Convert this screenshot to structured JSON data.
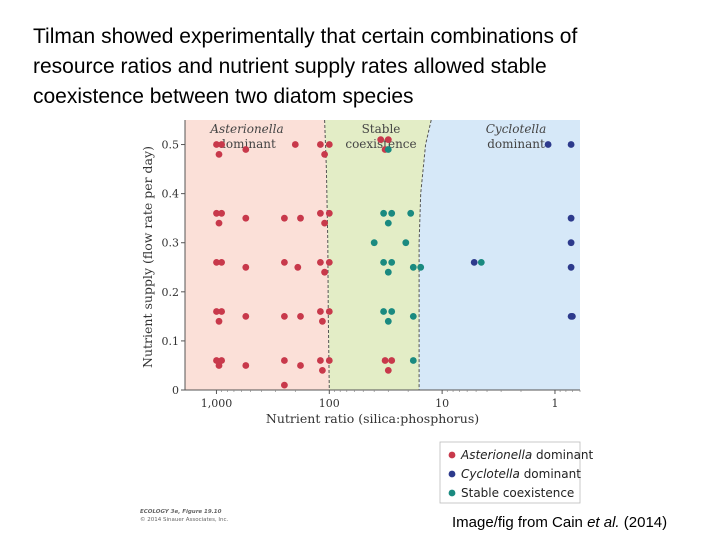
{
  "slide": {
    "title_lines": [
      "Tilman showed experimentally that certain combinations of",
      "resource ratios and nutrient supply rates allowed stable",
      "coexistence between two diatom species"
    ],
    "citation_prefix": "Image/fig from Cain ",
    "citation_italic": "et al.",
    "citation_suffix": " (2014)",
    "figure_credit_line1": "ECOLOGY 3e, Figure 19.10",
    "figure_credit_line2": "© 2014 Sinauer Associates, Inc."
  },
  "chart_data": {
    "type": "scatter",
    "title": "",
    "xlabel": "Nutrient ratio (silica:phosphorus)",
    "ylabel": "Nutrient supply (flow rate per day)",
    "x_scale": "log (reversed)",
    "xlim": [
      1900,
      0.6
    ],
    "ylim": [
      0,
      0.55
    ],
    "x_ticks": [
      1000,
      100,
      10,
      1
    ],
    "x_tick_labels": [
      "1,000",
      "100",
      "10",
      "1"
    ],
    "y_ticks": [
      0,
      0.1,
      0.2,
      0.3,
      0.4,
      0.5
    ],
    "y_tick_labels": [
      "0",
      "0.1",
      "0.2",
      "0.3",
      "0.4",
      "0.5"
    ],
    "regions": [
      {
        "label_lines": [
          "Asterionella",
          "dominant"
        ],
        "italic_first": true,
        "color": "#fbe0d8"
      },
      {
        "label_lines": [
          "Stable",
          "coexistence"
        ],
        "italic_first": false,
        "color": "#e3edc6"
      },
      {
        "label_lines": [
          "Cyclotella",
          "dominant"
        ],
        "italic_first": true,
        "color": "#d6e8f8"
      }
    ],
    "region_boundaries": {
      "left": [
        [
          110,
          0.55
        ],
        [
          106,
          0.45
        ],
        [
          103,
          0.3
        ],
        [
          102,
          0.15
        ],
        [
          100,
          0
        ]
      ],
      "right": [
        [
          12.5,
          0.55
        ],
        [
          14,
          0.5
        ],
        [
          15.5,
          0.4
        ],
        [
          16,
          0.3
        ],
        [
          16,
          0
        ]
      ]
    },
    "legend": {
      "placement": "bottom-right",
      "entries": [
        {
          "name_italic": "Asterionella",
          "name_rest": " dominant",
          "color": "#c8394b"
        },
        {
          "name_italic": "Cyclotella",
          "name_rest": " dominant",
          "color": "#2d3a8c"
        },
        {
          "name_italic": "",
          "name_rest": "Stable coexistence",
          "color": "#1a8a80"
        }
      ]
    },
    "series": [
      {
        "name": "Asterionella dominant",
        "color": "#c8394b",
        "points": [
          [
            1000,
            0.5
          ],
          [
            900,
            0.5
          ],
          [
            950,
            0.48
          ],
          [
            550,
            0.49
          ],
          [
            200,
            0.5
          ],
          [
            120,
            0.5
          ],
          [
            100,
            0.5
          ],
          [
            110,
            0.48
          ],
          [
            35,
            0.51
          ],
          [
            30,
            0.51
          ],
          [
            32,
            0.49
          ],
          [
            1000,
            0.36
          ],
          [
            900,
            0.36
          ],
          [
            950,
            0.34
          ],
          [
            550,
            0.35
          ],
          [
            250,
            0.35
          ],
          [
            180,
            0.35
          ],
          [
            120,
            0.36
          ],
          [
            100,
            0.36
          ],
          [
            110,
            0.34
          ],
          [
            1000,
            0.26
          ],
          [
            900,
            0.26
          ],
          [
            550,
            0.25
          ],
          [
            250,
            0.26
          ],
          [
            190,
            0.25
          ],
          [
            120,
            0.26
          ],
          [
            100,
            0.26
          ],
          [
            110,
            0.24
          ],
          [
            1000,
            0.16
          ],
          [
            900,
            0.16
          ],
          [
            950,
            0.14
          ],
          [
            550,
            0.15
          ],
          [
            250,
            0.15
          ],
          [
            180,
            0.15
          ],
          [
            120,
            0.16
          ],
          [
            100,
            0.16
          ],
          [
            115,
            0.14
          ],
          [
            1000,
            0.06
          ],
          [
            900,
            0.06
          ],
          [
            950,
            0.05
          ],
          [
            550,
            0.05
          ],
          [
            250,
            0.06
          ],
          [
            250,
            0.01
          ],
          [
            180,
            0.05
          ],
          [
            120,
            0.06
          ],
          [
            100,
            0.06
          ],
          [
            115,
            0.04
          ],
          [
            32,
            0.06
          ],
          [
            28,
            0.06
          ],
          [
            30,
            0.04
          ]
        ]
      },
      {
        "name": "Stable coexistence",
        "color": "#1a8a80",
        "points": [
          [
            30,
            0.49
          ],
          [
            33,
            0.36
          ],
          [
            28,
            0.36
          ],
          [
            30,
            0.34
          ],
          [
            19,
            0.36
          ],
          [
            40,
            0.3
          ],
          [
            21,
            0.3
          ],
          [
            33,
            0.26
          ],
          [
            28,
            0.26
          ],
          [
            18,
            0.25
          ],
          [
            15.5,
            0.25
          ],
          [
            30,
            0.24
          ],
          [
            4.5,
            0.26
          ],
          [
            33,
            0.16
          ],
          [
            28,
            0.16
          ],
          [
            30,
            0.14
          ],
          [
            18,
            0.15
          ],
          [
            18,
            0.06
          ]
        ]
      },
      {
        "name": "Cyclotella dominant",
        "color": "#2d3a8c",
        "points": [
          [
            1.15,
            0.5
          ],
          [
            0.72,
            0.5
          ],
          [
            0.72,
            0.35
          ],
          [
            0.72,
            0.3
          ],
          [
            5.2,
            0.26
          ],
          [
            0.72,
            0.25
          ],
          [
            0.72,
            0.15
          ],
          [
            0.7,
            0.15
          ]
        ]
      }
    ]
  }
}
